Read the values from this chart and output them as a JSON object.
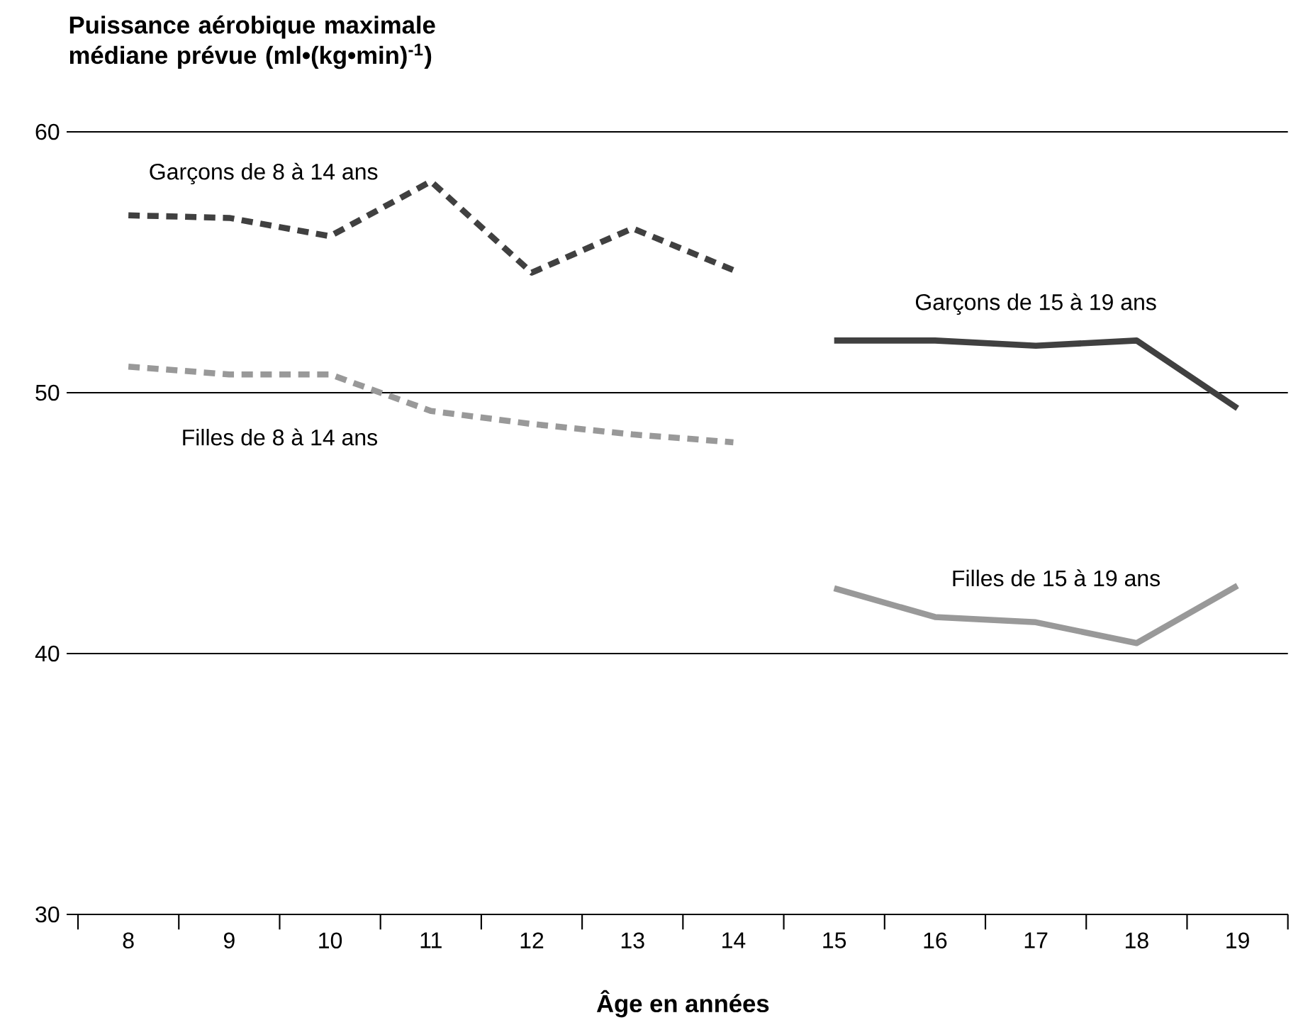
{
  "chart_data": {
    "type": "line",
    "ylabel": "Puissance aérobique maximale médiane prévue  (ml•(kg•min)$^{-1}$)",
    "xlabel": "Âge en années",
    "categories": [
      "8",
      "9",
      "10",
      "11",
      "12",
      "13",
      "14",
      "15",
      "16",
      "17",
      "18",
      "19"
    ],
    "ylim": [
      30,
      60
    ],
    "yticks": [
      30,
      40,
      50,
      60
    ],
    "grid": "y",
    "legend": false,
    "marker": "none",
    "series": [
      {
        "name": "Garçons de 8 à 14 ans",
        "color": "#404040",
        "line_style": "dashed",
        "values": [
          56.8,
          56.7,
          56.0,
          58.1,
          54.6,
          56.3,
          54.7,
          null,
          null,
          null,
          null,
          null
        ]
      },
      {
        "name": "Filles de 8 à 14 ans",
        "color": "#999999",
        "line_style": "dashed",
        "values": [
          51.0,
          50.7,
          50.7,
          49.3,
          48.8,
          48.4,
          48.1,
          null,
          null,
          null,
          null,
          null
        ]
      },
      {
        "name": "Garçons de 15 à 19 ans",
        "color": "#404040",
        "line_style": "solid",
        "values": [
          null,
          null,
          null,
          null,
          null,
          null,
          null,
          52.0,
          52.0,
          51.8,
          52.0,
          49.4
        ]
      },
      {
        "name": "Filles de 15 à 19 ans",
        "color": "#999999",
        "line_style": "solid",
        "values": [
          null,
          null,
          null,
          null,
          null,
          null,
          null,
          42.5,
          41.4,
          41.2,
          40.4,
          42.6
        ]
      }
    ]
  }
}
